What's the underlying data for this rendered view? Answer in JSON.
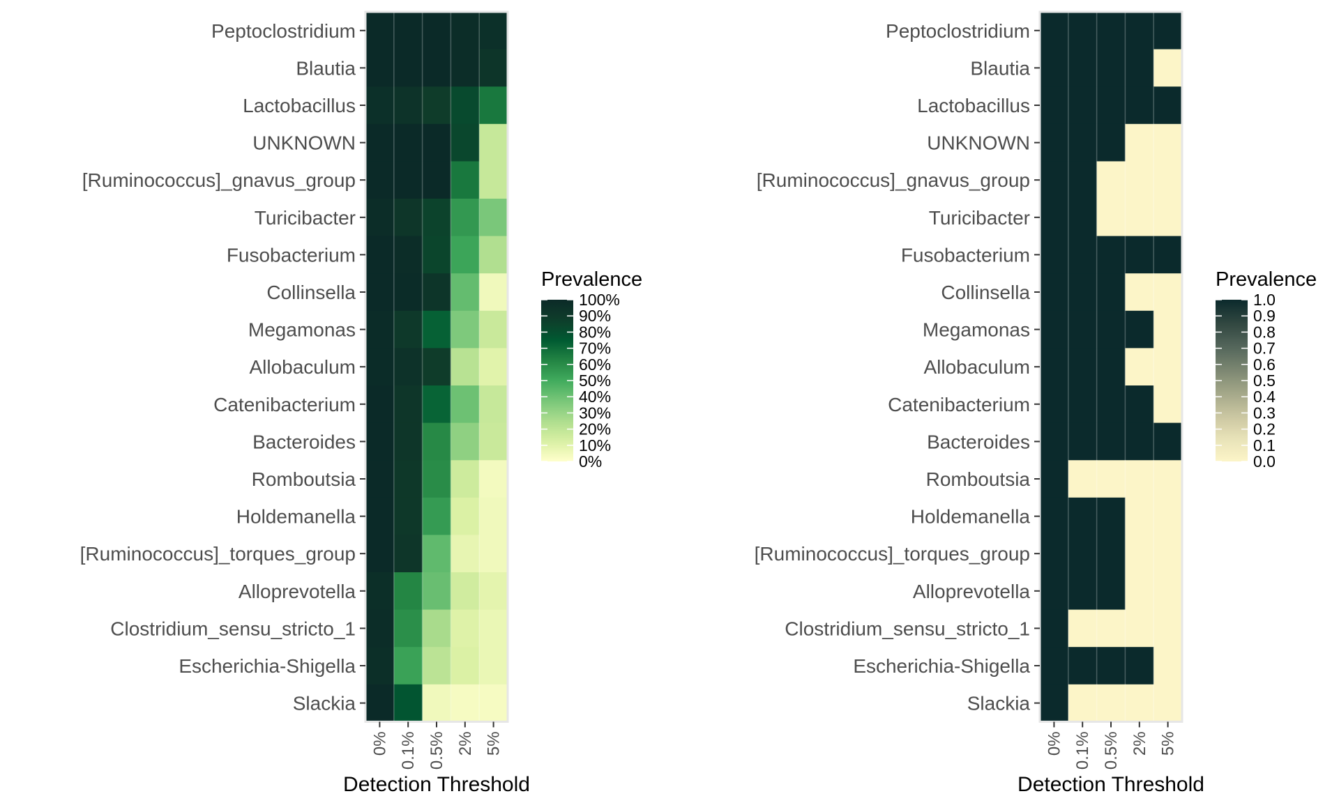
{
  "chart_data": [
    {
      "type": "heatmap",
      "xlabel": "Detection Threshold",
      "x_categories": [
        "0%",
        "0.1%",
        "0.5%",
        "2%",
        "5%"
      ],
      "y_categories": [
        "Peptoclostridium",
        "Blautia",
        "Lactobacillus",
        "UNKNOWN",
        "[Ruminococcus]_gnavus_group",
        "Turicibacter",
        "Fusobacterium",
        "Collinsella",
        "Megamonas",
        "Allobaculum",
        "Catenibacterium",
        "Bacteroides",
        "Romboutsia",
        "Holdemanella",
        "[Ruminococcus]_torques_group",
        "Alloprevotella",
        "Clostridium_sensu_stricto_1",
        "Escherichia-Shigella",
        "Slackia"
      ],
      "values": [
        [
          1.0,
          1.0,
          1.0,
          0.98,
          0.96
        ],
        [
          1.0,
          1.0,
          1.0,
          0.98,
          0.93
        ],
        [
          0.96,
          0.94,
          0.88,
          0.82,
          0.66
        ],
        [
          1.0,
          1.0,
          1.0,
          0.83,
          0.18
        ],
        [
          1.0,
          1.0,
          1.0,
          0.66,
          0.18
        ],
        [
          0.98,
          0.92,
          0.85,
          0.56,
          0.37
        ],
        [
          1.0,
          0.98,
          0.84,
          0.52,
          0.24
        ],
        [
          1.0,
          0.99,
          0.93,
          0.42,
          0.05
        ],
        [
          0.99,
          0.9,
          0.73,
          0.36,
          0.17
        ],
        [
          0.99,
          0.95,
          0.88,
          0.22,
          0.1
        ],
        [
          1.0,
          0.92,
          0.72,
          0.4,
          0.18
        ],
        [
          1.0,
          0.92,
          0.61,
          0.32,
          0.17
        ],
        [
          1.0,
          0.91,
          0.6,
          0.16,
          0.04
        ],
        [
          1.0,
          0.91,
          0.55,
          0.12,
          0.05
        ],
        [
          1.0,
          0.92,
          0.43,
          0.08,
          0.05
        ],
        [
          0.97,
          0.62,
          0.41,
          0.15,
          0.09
        ],
        [
          0.98,
          0.59,
          0.26,
          0.11,
          0.07
        ],
        [
          0.97,
          0.53,
          0.21,
          0.12,
          0.07
        ],
        [
          1.0,
          0.77,
          0.05,
          0.03,
          0.03
        ]
      ],
      "legend": {
        "title": "Prevalence",
        "ticks": [
          "100%",
          "90%",
          "80%",
          "70%",
          "60%",
          "50%",
          "40%",
          "30%",
          "20%",
          "10%",
          "0%"
        ],
        "placement": "right"
      },
      "color_scale": [
        "#ffffcc",
        "#d9f0a3",
        "#addd8e",
        "#78c679",
        "#41ab5d",
        "#238443",
        "#005a32",
        "#0f3d2a",
        "#0b2a28"
      ]
    },
    {
      "type": "heatmap",
      "xlabel": "Detection Threshold",
      "x_categories": [
        "0%",
        "0.1%",
        "0.5%",
        "2%",
        "5%"
      ],
      "y_categories": [
        "Peptoclostridium",
        "Blautia",
        "Lactobacillus",
        "UNKNOWN",
        "[Ruminococcus]_gnavus_group",
        "Turicibacter",
        "Fusobacterium",
        "Collinsella",
        "Megamonas",
        "Allobaculum",
        "Catenibacterium",
        "Bacteroides",
        "Romboutsia",
        "Holdemanella",
        "[Ruminococcus]_torques_group",
        "Alloprevotella",
        "Clostridium_sensu_stricto_1",
        "Escherichia-Shigella",
        "Slackia"
      ],
      "values": [
        [
          1,
          1,
          1,
          1,
          1
        ],
        [
          1,
          1,
          1,
          1,
          0
        ],
        [
          1,
          1,
          1,
          1,
          1
        ],
        [
          1,
          1,
          1,
          0,
          0
        ],
        [
          1,
          1,
          0,
          0,
          0
        ],
        [
          1,
          1,
          0,
          0,
          0
        ],
        [
          1,
          1,
          1,
          1,
          1
        ],
        [
          1,
          1,
          1,
          0,
          0
        ],
        [
          1,
          1,
          1,
          1,
          0
        ],
        [
          1,
          1,
          1,
          0,
          0
        ],
        [
          1,
          1,
          1,
          1,
          0
        ],
        [
          1,
          1,
          1,
          1,
          1
        ],
        [
          1,
          0,
          0,
          0,
          0
        ],
        [
          1,
          1,
          1,
          0,
          0
        ],
        [
          1,
          1,
          1,
          0,
          0
        ],
        [
          1,
          1,
          1,
          0,
          0
        ],
        [
          1,
          0,
          0,
          0,
          0
        ],
        [
          1,
          1,
          1,
          1,
          0
        ],
        [
          1,
          0,
          0,
          0,
          0
        ]
      ],
      "legend": {
        "title": "Prevalence",
        "ticks": [
          "1.0",
          "0.9",
          "0.8",
          "0.7",
          "0.6",
          "0.5",
          "0.4",
          "0.3",
          "0.2",
          "0.1",
          "0.0"
        ],
        "placement": "right"
      },
      "color_scale": [
        "#fcf5c8",
        "#e8e2b8",
        "#c9c5a0",
        "#a2a688",
        "#7a8570",
        "#52655a",
        "#304640",
        "#0b2a2c"
      ]
    }
  ]
}
